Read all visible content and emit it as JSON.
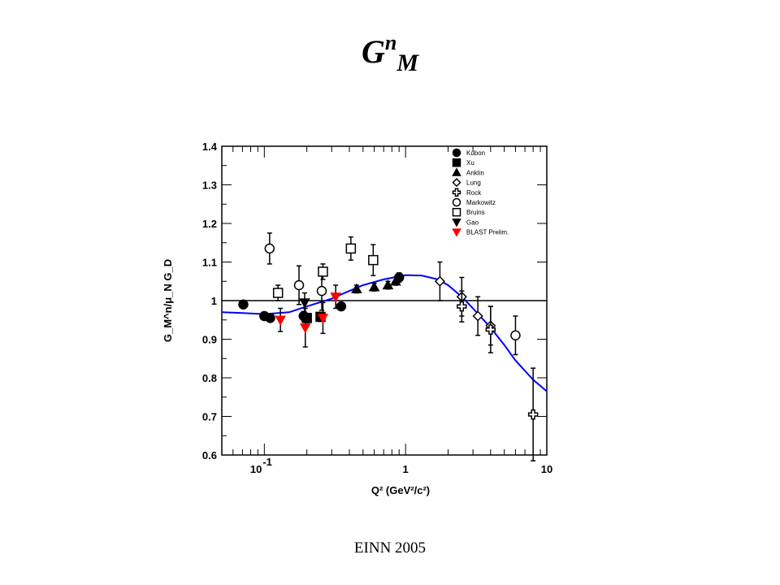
{
  "slide": {
    "title_base": "G",
    "title_sup": "n",
    "title_sub": "M",
    "footer": "EINN 2005"
  },
  "chart_data": {
    "type": "scatter",
    "xscale": "log",
    "xlim": [
      0.05,
      10
    ],
    "ylim": [
      0.6,
      1.4
    ],
    "xlabel": "Q² (GeV²/c²)",
    "ylabel": "G_M^n/μ_N G_D",
    "xticks": [
      {
        "v": 0.1,
        "base": "10",
        "exp": "-1"
      },
      {
        "v": 1,
        "label": "1"
      },
      {
        "v": 10,
        "label": "10"
      }
    ],
    "yticks": [
      "0.6",
      "0.7",
      "0.8",
      "0.9",
      "1",
      "1.1",
      "1.2",
      "1.3",
      "1.4"
    ],
    "ref_line": 1.0,
    "series": [
      {
        "name": "Kubon",
        "marker": "circle-filled",
        "color": "#000000",
        "points": [
          {
            "x": 0.071,
            "y": 0.99,
            "e": 0.01
          },
          {
            "x": 0.1,
            "y": 0.96,
            "e": 0.01
          },
          {
            "x": 0.11,
            "y": 0.955,
            "e": 0.01
          },
          {
            "x": 0.19,
            "y": 0.96,
            "e": 0.012
          },
          {
            "x": 0.35,
            "y": 0.985,
            "e": 0.01
          },
          {
            "x": 0.9,
            "y": 1.06,
            "e": 0.012
          }
        ]
      },
      {
        "name": "Xu",
        "marker": "square-filled",
        "color": "#000000",
        "points": [
          {
            "x": 0.2,
            "y": 0.955,
            "e": 0.012
          },
          {
            "x": 0.25,
            "y": 0.958,
            "e": 0.012
          }
        ]
      },
      {
        "name": "Anklin",
        "marker": "triangle-filled",
        "color": "#000000",
        "points": [
          {
            "x": 0.45,
            "y": 1.03,
            "e": 0.01
          },
          {
            "x": 0.6,
            "y": 1.035,
            "e": 0.01
          },
          {
            "x": 0.75,
            "y": 1.04,
            "e": 0.01
          },
          {
            "x": 0.85,
            "y": 1.05,
            "e": 0.01
          }
        ]
      },
      {
        "name": "Lung",
        "marker": "diamond-open",
        "color": "#000000",
        "points": [
          {
            "x": 1.75,
            "y": 1.05,
            "e": 0.05
          },
          {
            "x": 2.5,
            "y": 1.01,
            "e": 0.05
          },
          {
            "x": 3.25,
            "y": 0.96,
            "e": 0.05
          },
          {
            "x": 4.0,
            "y": 0.935,
            "e": 0.05
          }
        ]
      },
      {
        "name": "Rock",
        "marker": "cross-open",
        "color": "#000000",
        "points": [
          {
            "x": 2.5,
            "y": 0.985,
            "e": 0.04
          },
          {
            "x": 4.0,
            "y": 0.925,
            "e": 0.06
          },
          {
            "x": 8.0,
            "y": 0.705,
            "e": 0.12
          }
        ]
      },
      {
        "name": "Markowitz",
        "marker": "circle-open",
        "color": "#000000",
        "points": [
          {
            "x": 0.109,
            "y": 1.135,
            "e": 0.04
          },
          {
            "x": 0.176,
            "y": 1.04,
            "e": 0.05
          },
          {
            "x": 0.255,
            "y": 1.025,
            "e": 0.05
          },
          {
            "x": 6.0,
            "y": 0.91,
            "e": 0.05
          }
        ]
      },
      {
        "name": "Bruins",
        "marker": "square-open",
        "color": "#000000",
        "points": [
          {
            "x": 0.125,
            "y": 1.02,
            "e": 0.02
          },
          {
            "x": 0.26,
            "y": 1.075,
            "e": 0.02
          },
          {
            "x": 0.41,
            "y": 1.135,
            "e": 0.03
          },
          {
            "x": 0.59,
            "y": 1.105,
            "e": 0.04
          }
        ]
      },
      {
        "name": "Gao",
        "marker": "triangle-down-filled",
        "color": "#000000",
        "points": [
          {
            "x": 0.193,
            "y": 0.995,
            "e": 0.025
          }
        ]
      },
      {
        "name": "BLAST Prelim.",
        "marker": "triangle-down-filled",
        "color": "#ff0000",
        "points": [
          {
            "x": 0.13,
            "y": 0.95,
            "e": 0.03
          },
          {
            "x": 0.195,
            "y": 0.93,
            "e": 0.05
          },
          {
            "x": 0.26,
            "y": 0.955,
            "e": 0.04
          },
          {
            "x": 0.32,
            "y": 1.01,
            "e": 0.03
          }
        ]
      }
    ],
    "fit_curve": {
      "color": "#0000ff",
      "points": [
        [
          0.05,
          0.97
        ],
        [
          0.07,
          0.968
        ],
        [
          0.1,
          0.965
        ],
        [
          0.15,
          0.97
        ],
        [
          0.2,
          0.985
        ],
        [
          0.3,
          1.005
        ],
        [
          0.4,
          1.025
        ],
        [
          0.5,
          1.04
        ],
        [
          0.7,
          1.055
        ],
        [
          1.0,
          1.066
        ],
        [
          1.3,
          1.065
        ],
        [
          1.7,
          1.055
        ],
        [
          2.0,
          1.04
        ],
        [
          2.5,
          1.01
        ],
        [
          3.0,
          0.98
        ],
        [
          4.0,
          0.93
        ],
        [
          5.0,
          0.885
        ],
        [
          6.0,
          0.845
        ],
        [
          8.0,
          0.795
        ],
        [
          10.0,
          0.765
        ]
      ]
    },
    "legend_position": "top-right"
  }
}
